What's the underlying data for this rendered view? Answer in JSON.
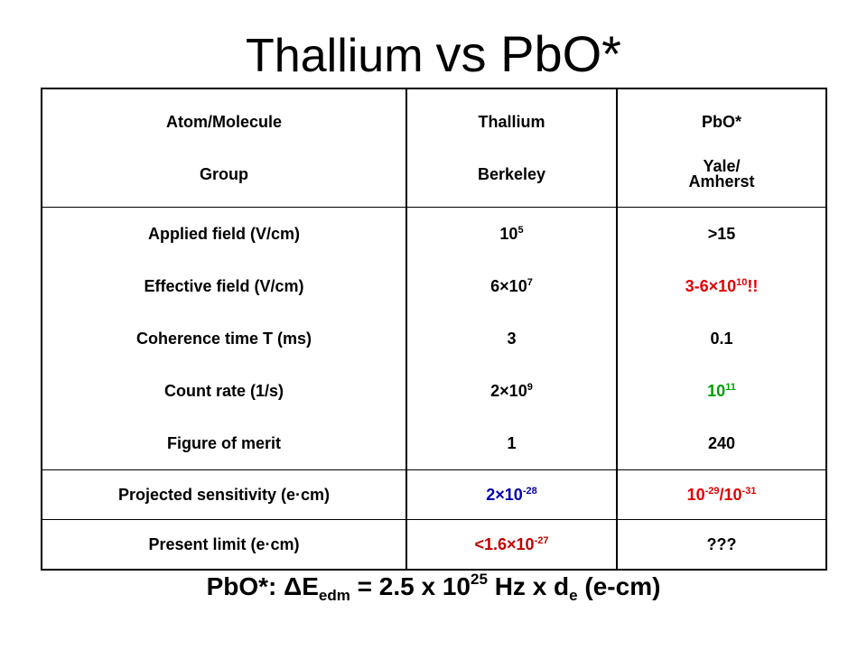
{
  "title": {
    "main": "Thallium",
    "vs": "vs PbO*"
  },
  "header": {
    "col1": [
      "Atom/Molecule",
      "Group"
    ],
    "col2": [
      "Thallium",
      "Berkeley"
    ],
    "col3": [
      "PbO*",
      "Yale/",
      "Amherst"
    ]
  },
  "rows": {
    "labels": [
      "Applied  field (V/cm)",
      "Effective  field (V/cm)",
      "Coherence time T (ms)",
      "Count rate (1/s)",
      "Figure of merit"
    ],
    "thallium": {
      "applied_base": "10",
      "applied_exp": "5",
      "effective_base": "6×10",
      "effective_exp": "7",
      "coherence": "3",
      "count_base": "2×10",
      "count_exp": "9",
      "merit": "1"
    },
    "pbo": {
      "applied": ">15",
      "effective_base": "3-6×10",
      "effective_exp": "10",
      "effective_suffix": "!!",
      "coherence": "0.1",
      "count_base": "10",
      "count_exp": "11",
      "merit": "240"
    }
  },
  "sensitivity": {
    "label": "Projected  sensitivity (e·cm)",
    "thallium_base": "2×10",
    "thallium_exp": "-28",
    "pbo_base1": "10",
    "pbo_exp1": "-29",
    "pbo_sep": "/10",
    "pbo_exp2": "-31"
  },
  "limit": {
    "label": "Present limit (e·cm)",
    "thallium_base": "<1.6×10",
    "thallium_exp": "-27",
    "pbo": "???"
  },
  "formula": {
    "prefix": "PbO*:  ΔE",
    "sub1": "edm",
    "mid": " = 2.5 x 10",
    "exp": "25",
    "tail": " Hz  x d",
    "sub2": "e",
    "end": " (e-cm)"
  },
  "colors": {
    "red": "#e00000",
    "green": "#00a000",
    "blue": "#0000b0",
    "maroon": "#c00000"
  }
}
